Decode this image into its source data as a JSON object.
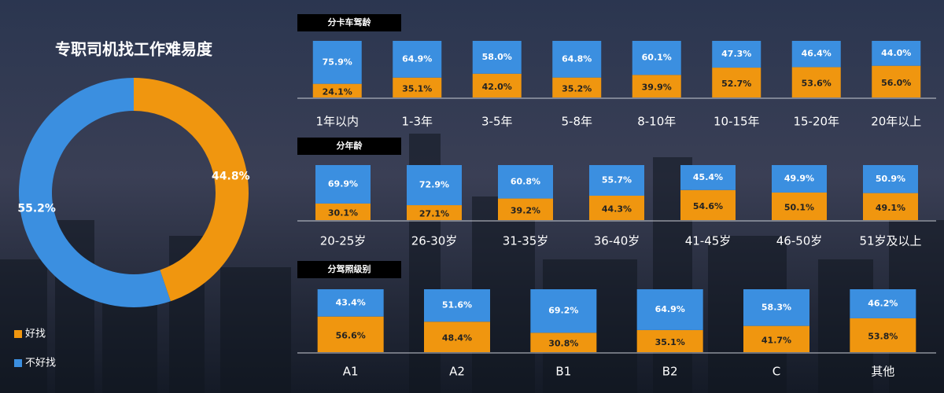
{
  "chart_data": [
    {
      "type": "donut",
      "title": "专职司机找工作难易度",
      "categories": [
        "好找",
        "不好找"
      ],
      "values": [
        44.8,
        55.2
      ],
      "value_labels": [
        "44.8%",
        "55.2%"
      ],
      "colors": [
        "#f0960f",
        "#3b8fe0"
      ],
      "legend": "bottom-left"
    },
    {
      "type": "stacked_bar",
      "title": "分卡车驾龄",
      "categories": [
        "1年以内",
        "1-3年",
        "3-5年",
        "5-8年",
        "8-10年",
        "10-15年",
        "15-20年",
        "20年以上"
      ],
      "ylim": [
        0,
        100
      ],
      "series": [
        {
          "color": "#f0960f",
          "values": [
            24.1,
            35.1,
            42.0,
            35.2,
            39.9,
            52.7,
            53.6,
            56.0
          ],
          "value_labels": [
            "24.1%",
            "35.1%",
            "42.0%",
            "35.2%",
            "39.9%",
            "52.7%",
            "53.6%",
            "56.0%"
          ]
        },
        {
          "color": "#3b8fe0",
          "values": [
            75.9,
            64.9,
            58.0,
            64.8,
            60.1,
            47.3,
            46.4,
            44.0
          ],
          "value_labels": [
            "75.9%",
            "64.9%",
            "58.0%",
            "64.8%",
            "60.1%",
            "47.3%",
            "46.4%",
            "44.0%"
          ]
        }
      ]
    },
    {
      "type": "stacked_bar",
      "title": "分年龄",
      "categories": [
        "20-25岁",
        "26-30岁",
        "31-35岁",
        "36-40岁",
        "41-45岁",
        "46-50岁",
        "51岁及以上"
      ],
      "ylim": [
        0,
        100
      ],
      "series": [
        {
          "color": "#f0960f",
          "values": [
            30.1,
            27.1,
            39.2,
            44.3,
            54.6,
            50.1,
            49.1
          ],
          "value_labels": [
            "30.1%",
            "27.1%",
            "39.2%",
            "44.3%",
            "54.6%",
            "50.1%",
            "49.1%"
          ]
        },
        {
          "color": "#3b8fe0",
          "values": [
            69.9,
            72.9,
            60.8,
            55.7,
            45.4,
            49.9,
            50.9
          ],
          "value_labels": [
            "69.9%",
            "72.9%",
            "60.8%",
            "55.7%",
            "45.4%",
            "49.9%",
            "50.9%"
          ]
        }
      ]
    },
    {
      "type": "stacked_bar",
      "title": "分驾照级别",
      "categories": [
        "A1",
        "A2",
        "B1",
        "B2",
        "C",
        "其他"
      ],
      "ylim": [
        0,
        100
      ],
      "series": [
        {
          "color": "#f0960f",
          "values": [
            56.6,
            48.4,
            30.8,
            35.1,
            41.7,
            53.8
          ],
          "value_labels": [
            "56.6%",
            "48.4%",
            "30.8%",
            "35.1%",
            "41.7%",
            "53.8%"
          ]
        },
        {
          "color": "#3b8fe0",
          "values": [
            43.4,
            51.6,
            69.2,
            64.9,
            58.3,
            46.2
          ],
          "value_labels": [
            "43.4%",
            "51.6%",
            "69.2%",
            "64.9%",
            "58.3%",
            "46.2%"
          ]
        }
      ]
    }
  ]
}
